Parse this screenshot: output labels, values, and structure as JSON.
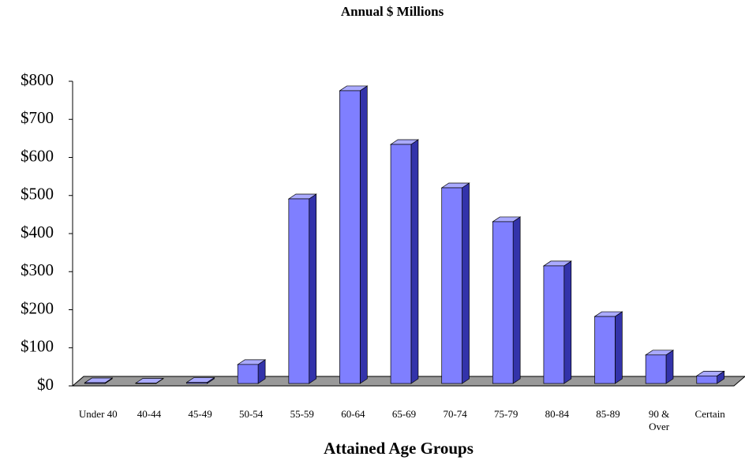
{
  "chart_data": {
    "type": "bar3d",
    "title": "Annual $ Millions",
    "x_label": "Attained Age Groups",
    "categories": [
      "Under 40",
      "40-44",
      "45-49",
      "50-54",
      "55-59",
      "60-64",
      "65-69",
      "70-74",
      "75-79",
      "80-84",
      "85-89",
      "90 & Over",
      "Certain"
    ],
    "values": [
      2,
      1,
      3,
      50,
      485,
      769,
      628,
      514,
      425,
      309,
      176,
      75,
      20
    ],
    "color": "#7f7fff",
    "ylim": [
      0,
      800
    ],
    "yticks": [
      {
        "value": 0,
        "label": "$0"
      },
      {
        "value": 100,
        "label": "$100"
      },
      {
        "value": 200,
        "label": "$200"
      },
      {
        "value": 300,
        "label": "$300"
      },
      {
        "value": 400,
        "label": "$400"
      },
      {
        "value": 500,
        "label": "$500"
      },
      {
        "value": 600,
        "label": "$600"
      },
      {
        "value": 700,
        "label": "$700"
      },
      {
        "value": 800,
        "label": "$800"
      }
    ],
    "grid": false
  }
}
